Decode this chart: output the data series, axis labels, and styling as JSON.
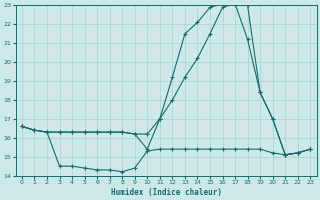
{
  "xlabel": "Humidex (Indice chaleur)",
  "bg_color": "#cce8e8",
  "line_color": "#1a6b6b",
  "grid_color": "#b0d4d4",
  "xlim": [
    -0.5,
    23.5
  ],
  "ylim": [
    14,
    23
  ],
  "yticks": [
    14,
    15,
    16,
    17,
    18,
    19,
    20,
    21,
    22,
    23
  ],
  "xticks": [
    0,
    1,
    2,
    3,
    4,
    5,
    6,
    7,
    8,
    9,
    10,
    11,
    12,
    13,
    14,
    15,
    16,
    17,
    18,
    19,
    20,
    21,
    22,
    23
  ],
  "line1_x": [
    0,
    1,
    2,
    3,
    4,
    5,
    6,
    7,
    8,
    9,
    10,
    11,
    12,
    13,
    14,
    15,
    16,
    17,
    18,
    19,
    20,
    21,
    22,
    23
  ],
  "line1_y": [
    16.6,
    16.4,
    16.3,
    16.3,
    16.3,
    16.3,
    16.3,
    16.3,
    16.3,
    16.2,
    15.4,
    17.0,
    19.2,
    21.5,
    22.1,
    22.9,
    23.1,
    23.1,
    21.2,
    18.4,
    17.0,
    15.1,
    15.2,
    15.4
  ],
  "line2_x": [
    0,
    1,
    2,
    3,
    4,
    5,
    6,
    7,
    8,
    9,
    10,
    11,
    12,
    13,
    14,
    15,
    16,
    17,
    18,
    19,
    20,
    21,
    22,
    23
  ],
  "line2_y": [
    16.6,
    16.4,
    16.3,
    16.3,
    16.3,
    16.3,
    16.3,
    16.3,
    16.3,
    16.2,
    16.2,
    17.0,
    18.0,
    19.2,
    20.2,
    21.5,
    22.9,
    23.1,
    23.0,
    18.4,
    17.0,
    15.1,
    15.2,
    15.4
  ],
  "line3_x": [
    0,
    1,
    2,
    3,
    4,
    5,
    6,
    7,
    8,
    9,
    10,
    11,
    12,
    13,
    14,
    15,
    16,
    17,
    18,
    19,
    20,
    21,
    22,
    23
  ],
  "line3_y": [
    16.6,
    16.4,
    16.3,
    14.5,
    14.5,
    14.4,
    14.3,
    14.3,
    14.2,
    14.4,
    15.3,
    15.4,
    15.4,
    15.4,
    15.4,
    15.4,
    15.4,
    15.4,
    15.4,
    15.4,
    15.2,
    15.1,
    15.2,
    15.4
  ]
}
